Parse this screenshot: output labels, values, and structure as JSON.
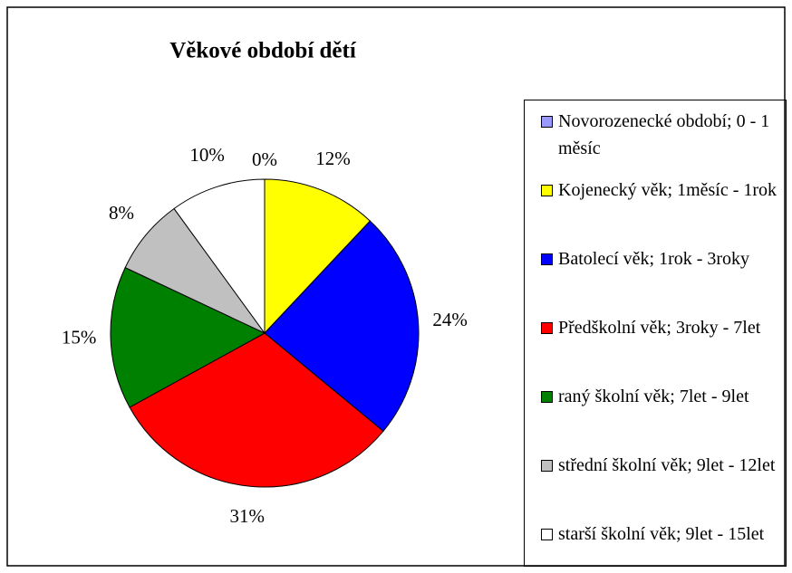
{
  "chart_data": {
    "type": "pie",
    "title": "Věkové období dětí",
    "categories": [
      "Novorozenecké období; 0 - 1 měsíc",
      "Kojenecký věk; 1měsíc - 1rok",
      "Batolecí věk; 1rok - 3roky",
      "Předškolní věk; 3roky - 7let",
      "raný školní věk; 7let - 9let",
      "střední školní věk; 9let - 12let",
      "starší školní věk; 9let - 15let"
    ],
    "values": [
      0,
      12,
      24,
      31,
      15,
      8,
      10
    ],
    "value_labels": [
      "0%",
      "12%",
      "24%",
      "31%",
      "15%",
      "8%",
      "10%"
    ],
    "colors": [
      "#9999ff",
      "#ffff00",
      "#0000ff",
      "#ff0000",
      "#008000",
      "#c0c0c0",
      "#ffffff"
    ],
    "legend": "right"
  }
}
